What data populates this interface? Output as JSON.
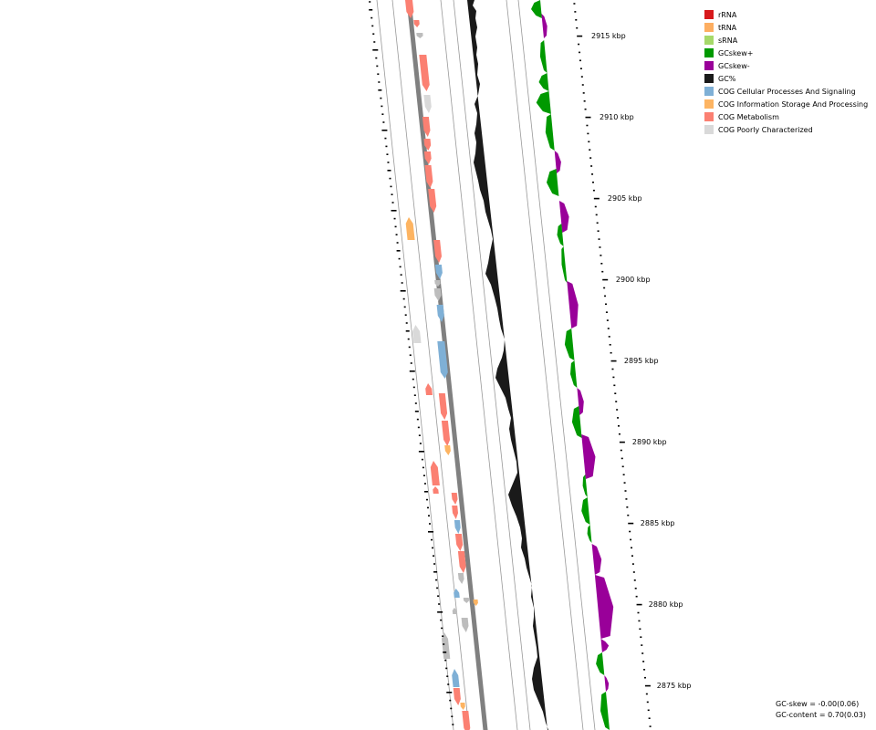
{
  "legend": [
    {
      "label": "rRNA",
      "color": "#d7191c"
    },
    {
      "label": "tRNA",
      "color": "#fdae61"
    },
    {
      "label": "sRNA",
      "color": "#a6d96a"
    },
    {
      "label": "GCskew+",
      "color": "#009900"
    },
    {
      "label": "GCskew-",
      "color": "#990099"
    },
    {
      "label": "GC%",
      "color": "#1a1a1a"
    },
    {
      "label": "COG Cellular Processes And Signaling",
      "color": "#7fb0d6"
    },
    {
      "label": "COG Information Storage And Processing",
      "color": "#fdb462"
    },
    {
      "label": "COG Metabolism",
      "color": "#fb8072"
    },
    {
      "label": "COG Poorly Characterized",
      "color": "#d9d9d9"
    }
  ],
  "axis_labels": [
    "2915 kbp",
    "2910 kbp",
    "2905 kbp",
    "2900 kbp",
    "2895 kbp",
    "2890 kbp",
    "2885 kbp",
    "2880 kbp",
    "2875 kbp"
  ],
  "stats": {
    "gc_skew": "GC-skew = -0.00(0.06)",
    "gc_content": "GC-content = 0.70(0.03)"
  },
  "colors": {
    "backbone": "#808080",
    "ring_line": "#999999",
    "gc_percent": "#1a1a1a",
    "gc_skew_pos": "#009900",
    "gc_skew_neg": "#990099",
    "cog_metabolism": "#fb8072",
    "cog_cellular": "#7fb0d6",
    "cog_information": "#fdb462",
    "cog_poorly": "#d9d9d9"
  }
}
